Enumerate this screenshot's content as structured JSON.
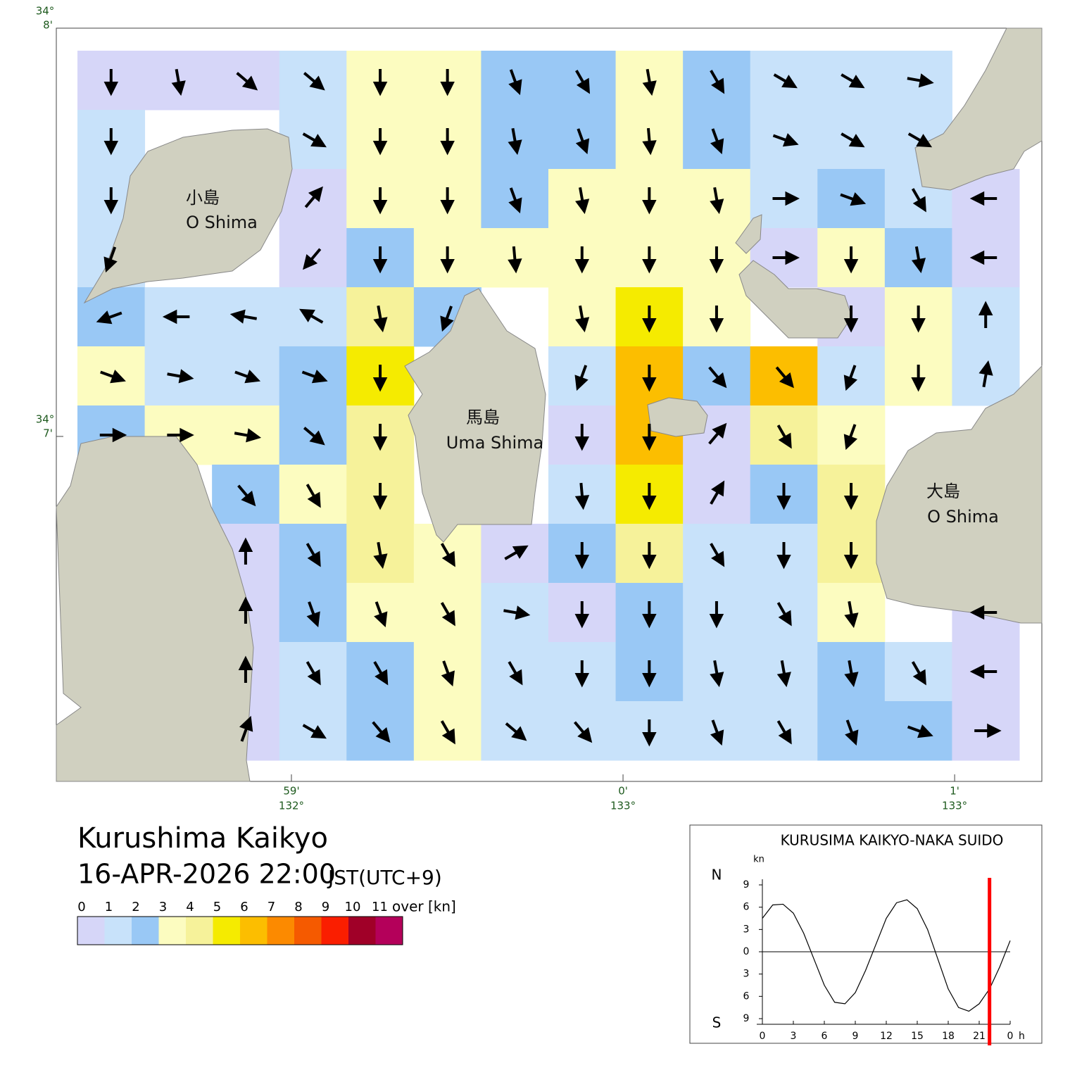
{
  "header": {
    "title": "Kurushima Kaikyo",
    "datetime": "16-APR-2026 22:00",
    "timezone": "JST(UTC+9)"
  },
  "map": {
    "lat_range": [
      6.155,
      8
    ],
    "lon_range": [
      -1.709,
      1.263
    ],
    "lat_ticks": [
      {
        "value": 8,
        "deg": "34°",
        "min": "8'"
      },
      {
        "value": 7,
        "deg": "34°",
        "min": "7'"
      }
    ],
    "lon_ticks": [
      {
        "value": -1,
        "min": "59'",
        "deg": "132°"
      },
      {
        "value": 0,
        "min": "0'",
        "deg": "133°"
      },
      {
        "value": 1,
        "min": "1'",
        "deg": "133°"
      }
    ],
    "places": [
      {
        "name_ja": "小島",
        "name_en": "O Shima"
      },
      {
        "name_ja": "馬島",
        "name_en": "Uma Shima"
      },
      {
        "name_ja": "大島",
        "name_en": "O Shima"
      }
    ],
    "speeds": [
      [
        0.5,
        0.5,
        0.5,
        1.5,
        3.5,
        3.5,
        2.5,
        2.5,
        3.5,
        2.5,
        1.5,
        1.5,
        1.0,
        null
      ],
      [
        1.5,
        null,
        null,
        1.0,
        3.5,
        3.5,
        2.5,
        2.5,
        3.5,
        2.5,
        1.5,
        1.5,
        1.0,
        null
      ],
      [
        1.0,
        null,
        null,
        0.5,
        3.5,
        3.5,
        2.5,
        3.5,
        3.5,
        3.5,
        1.5,
        2.5,
        1.5,
        0.5
      ],
      [
        1.5,
        null,
        null,
        0.5,
        2.5,
        3.5,
        3.5,
        3.5,
        3.5,
        3.5,
        0.5,
        3.5,
        2.5,
        0.5
      ],
      [
        2.5,
        1.0,
        1.0,
        1.5,
        4.5,
        2.5,
        null,
        3.5,
        5.0,
        3.5,
        null,
        0.5,
        3.5,
        1.5
      ],
      [
        3.5,
        1.5,
        1.0,
        2.5,
        5.5,
        null,
        null,
        1.5,
        6.0,
        2.5,
        6.0,
        1.5,
        3.5,
        1.5
      ],
      [
        2.0,
        3.5,
        3.5,
        2.5,
        4.5,
        null,
        null,
        0.5,
        6.0,
        0.5,
        4.5,
        3.5,
        null,
        null
      ],
      [
        null,
        null,
        2.5,
        3.5,
        4.5,
        null,
        null,
        1.5,
        5.5,
        0.5,
        2.5,
        4.5,
        null,
        null
      ],
      [
        null,
        null,
        0.5,
        2.5,
        4.5,
        3.5,
        0.5,
        2.5,
        4.5,
        1.5,
        1.5,
        4.5,
        null,
        null
      ],
      [
        null,
        null,
        0.5,
        2.5,
        3.5,
        3.5,
        1.0,
        0.5,
        2.5,
        1.5,
        1.0,
        3.5,
        null,
        0.5
      ],
      [
        null,
        null,
        0.5,
        1.5,
        2.5,
        3.5,
        1.5,
        1.0,
        2.5,
        1.5,
        1.0,
        2.5,
        1.5,
        0.5
      ],
      [
        null,
        null,
        0.5,
        1.0,
        2.5,
        3.5,
        1.5,
        1.0,
        1.5,
        1.5,
        1.0,
        2.5,
        2.5,
        0.5
      ]
    ],
    "directions": [
      [
        180,
        170,
        130,
        130,
        180,
        180,
        160,
        150,
        170,
        150,
        120,
        120,
        100,
        null
      ],
      [
        180,
        null,
        null,
        120,
        180,
        180,
        170,
        160,
        175,
        160,
        110,
        120,
        120,
        null
      ],
      [
        180,
        null,
        null,
        40,
        180,
        180,
        160,
        170,
        180,
        170,
        90,
        110,
        150,
        270
      ],
      [
        200,
        null,
        null,
        220,
        180,
        180,
        175,
        180,
        180,
        180,
        90,
        180,
        170,
        270
      ],
      [
        250,
        270,
        280,
        300,
        170,
        200,
        null,
        170,
        180,
        180,
        null,
        180,
        180,
        0
      ],
      [
        110,
        100,
        110,
        110,
        180,
        null,
        null,
        200,
        180,
        140,
        140,
        200,
        180,
        10
      ],
      [
        90,
        90,
        100,
        130,
        180,
        null,
        null,
        180,
        180,
        40,
        150,
        200,
        null,
        null
      ],
      [
        null,
        null,
        140,
        150,
        180,
        null,
        null,
        175,
        180,
        30,
        180,
        180,
        null,
        null
      ],
      [
        null,
        null,
        0,
        150,
        170,
        150,
        60,
        180,
        180,
        150,
        180,
        180,
        null,
        null
      ],
      [
        null,
        null,
        0,
        160,
        160,
        150,
        100,
        180,
        180,
        180,
        150,
        170,
        null,
        270
      ],
      [
        null,
        null,
        0,
        150,
        150,
        160,
        150,
        180,
        180,
        170,
        170,
        170,
        150,
        270
      ],
      [
        null,
        null,
        20,
        120,
        140,
        150,
        130,
        140,
        180,
        160,
        150,
        160,
        110,
        90
      ]
    ]
  },
  "speed_scale": {
    "ticks": [
      0,
      1,
      2,
      3,
      4,
      5,
      6,
      7,
      8,
      9,
      10,
      11
    ],
    "over_label": "over [kn]",
    "colors": [
      "#d6d6f8",
      "#c8e2fa",
      "#99c8f5",
      "#fcfcc0",
      "#f6f29a",
      "#f5eb00",
      "#fcbe00",
      "#fc8a00",
      "#f55a00",
      "#fa1e00",
      "#a00028",
      "#b4005a"
    ]
  },
  "chart_data": {
    "type": "line",
    "title": "KURUSIMA KAIKYO-NAKA SUIDO",
    "y_unit": "kn",
    "north_label": "N",
    "south_label": "S",
    "x_unit": "h",
    "x": [
      0,
      1,
      2,
      3,
      4,
      5,
      6,
      7,
      8,
      9,
      10,
      11,
      12,
      13,
      14,
      15,
      16,
      17,
      18,
      19,
      20,
      21,
      22,
      23,
      24
    ],
    "series": [
      {
        "color": "#000000",
        "values": [
          4.5,
          6.3,
          6.4,
          5.2,
          2.5,
          -1,
          -4.5,
          -6.8,
          -7.0,
          -5.5,
          -2.5,
          1,
          4.5,
          6.6,
          7.0,
          5.8,
          3,
          -1,
          -5,
          -7.5,
          -8.0,
          -7.0,
          -5,
          -2,
          1.5
        ]
      }
    ],
    "xlim": [
      0,
      24
    ],
    "ylim": [
      -9,
      9
    ],
    "xticks": [
      0,
      3,
      6,
      9,
      12,
      15,
      18,
      21,
      {
        "value": 24,
        "label": "0"
      }
    ],
    "yticks": [
      9,
      6,
      3,
      0,
      {
        "value": -3,
        "label": "3"
      },
      {
        "value": -6,
        "label": "6"
      },
      {
        "value": -9,
        "label": "9"
      }
    ],
    "current_time": 22,
    "current_color": "#ff0000"
  }
}
